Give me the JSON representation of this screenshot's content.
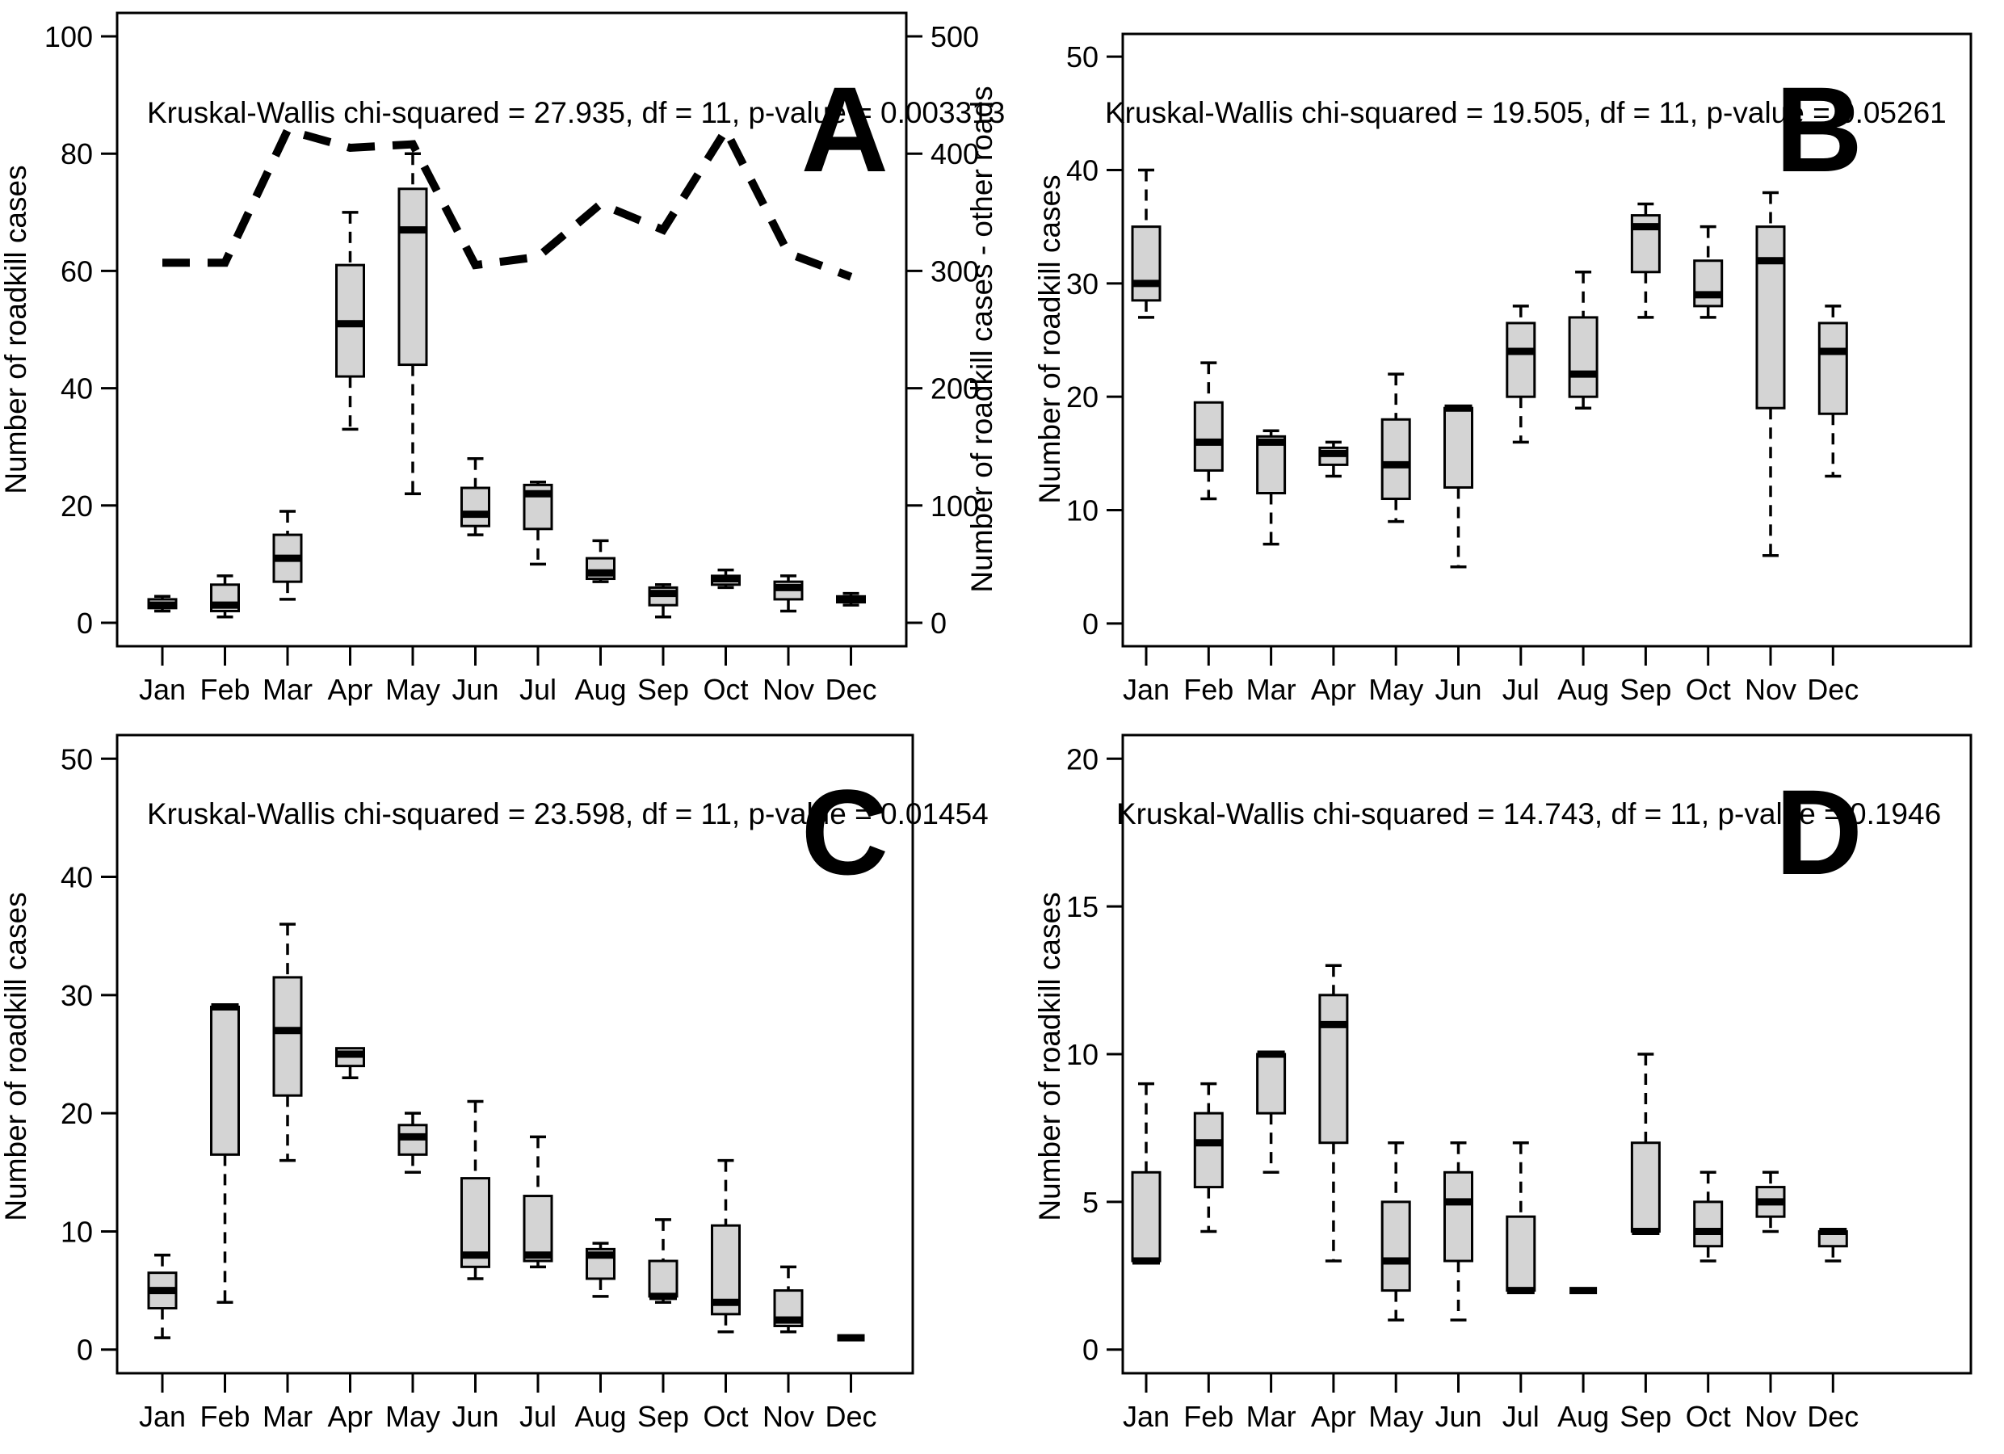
{
  "colors": {
    "background": "#ffffff",
    "box_fill": "#d4d4d4",
    "stroke": "#000000"
  },
  "box_stats_format": [
    "whisker_low",
    "q1",
    "median",
    "q3",
    "whisker_high"
  ],
  "chart_data": [
    {
      "id": "A",
      "type": "boxplot",
      "panel_label": "A",
      "stat_text": "Kruskal-Wallis chi-squared = 27.935, df = 11, p-value = 0.003313",
      "ylabel": "Number of roadkill cases",
      "ylim": [
        0,
        100
      ],
      "yticks": [
        0,
        20,
        40,
        60,
        80,
        100
      ],
      "categories": [
        "Jan",
        "Feb",
        "Mar",
        "Apr",
        "May",
        "Jun",
        "Jul",
        "Aug",
        "Sep",
        "Oct",
        "Nov",
        "Dec"
      ],
      "boxes": [
        [
          2,
          2.5,
          3,
          4,
          4.5
        ],
        [
          1,
          2,
          3,
          6.5,
          8
        ],
        [
          4,
          7,
          11,
          15,
          19
        ],
        [
          33,
          42,
          51,
          61,
          70
        ],
        [
          22,
          44,
          67,
          74,
          80
        ],
        [
          15,
          16.5,
          18.5,
          23,
          28
        ],
        [
          10,
          16,
          22,
          23.5,
          24
        ],
        [
          7,
          7.5,
          8.5,
          11,
          14
        ],
        [
          1,
          3,
          5,
          6,
          6.5
        ],
        [
          6,
          6.5,
          7.5,
          8,
          9
        ],
        [
          2,
          4,
          6,
          7,
          8
        ],
        [
          3,
          3.5,
          4,
          4.5,
          5
        ]
      ],
      "overlay_line": {
        "label": "Number of roadkill cases - other roads",
        "axis": "right",
        "style": "dashed",
        "ylim": [
          0,
          500
        ],
        "yticks": [
          0,
          100,
          200,
          300,
          400,
          500
        ],
        "values": [
          307,
          307,
          420,
          405,
          408,
          305,
          312,
          357,
          335,
          420,
          315,
          295
        ]
      }
    },
    {
      "id": "B",
      "type": "boxplot",
      "panel_label": "B",
      "stat_text": "Kruskal-Wallis chi-squared = 19.505, df = 11, p-value = 0.05261",
      "ylabel": "Number of roadkill cases",
      "ylim": [
        0,
        50
      ],
      "yticks": [
        0,
        10,
        20,
        30,
        40,
        50
      ],
      "categories": [
        "Jan",
        "Feb",
        "Mar",
        "Apr",
        "May",
        "Jun",
        "Jul",
        "Aug",
        "Sep",
        "Oct",
        "Nov",
        "Dec"
      ],
      "boxes": [
        [
          27,
          28.5,
          30,
          35,
          40
        ],
        [
          11,
          13.5,
          16,
          19.5,
          23
        ],
        [
          7,
          11.5,
          16,
          16.5,
          17
        ],
        [
          13,
          14,
          15,
          15.5,
          16
        ],
        [
          9,
          11,
          14,
          18,
          22
        ],
        [
          5,
          12,
          19,
          19,
          19
        ],
        [
          16,
          20,
          24,
          26.5,
          28
        ],
        [
          19,
          20,
          22,
          27,
          31
        ],
        [
          27,
          31,
          35,
          36,
          37
        ],
        [
          27,
          28,
          29,
          32,
          35
        ],
        [
          6,
          19,
          32,
          35,
          38
        ],
        [
          13,
          18.5,
          24,
          26.5,
          28
        ]
      ]
    },
    {
      "id": "C",
      "type": "boxplot",
      "panel_label": "C",
      "stat_text": "Kruskal-Wallis chi-squared = 23.598, df = 11, p-value = 0.01454",
      "ylabel": "Number of roadkill cases",
      "ylim": [
        0,
        50
      ],
      "yticks": [
        0,
        10,
        20,
        30,
        40,
        50
      ],
      "categories": [
        "Jan",
        "Feb",
        "Mar",
        "Apr",
        "May",
        "Jun",
        "Jul",
        "Aug",
        "Sep",
        "Oct",
        "Nov",
        "Dec"
      ],
      "boxes": [
        [
          1,
          3.5,
          5,
          6.5,
          8
        ],
        [
          4,
          16.5,
          29,
          29,
          29
        ],
        [
          16,
          21.5,
          27,
          31.5,
          36
        ],
        [
          23,
          24,
          25,
          25.5,
          25.5
        ],
        [
          15,
          16.5,
          18,
          19,
          20
        ],
        [
          6,
          7,
          8,
          14.5,
          21
        ],
        [
          7,
          7.5,
          8,
          13,
          18
        ],
        [
          4.5,
          6,
          8,
          8.5,
          9
        ],
        [
          4,
          4.5,
          4.5,
          7.5,
          11
        ],
        [
          1.5,
          3,
          4,
          10.5,
          16
        ],
        [
          1.5,
          2,
          2.5,
          5,
          7
        ],
        [
          1,
          1,
          1,
          1,
          1
        ]
      ]
    },
    {
      "id": "D",
      "type": "boxplot",
      "panel_label": "D",
      "stat_text": "Kruskal-Wallis chi-squared = 14.743, df = 11, p-value = 0.1946",
      "ylabel": "Number of roadkill cases",
      "ylim": [
        0,
        20
      ],
      "yticks": [
        0,
        5,
        10,
        15,
        20
      ],
      "categories": [
        "Jan",
        "Feb",
        "Mar",
        "Apr",
        "May",
        "Jun",
        "Jul",
        "Aug",
        "Sep",
        "Oct",
        "Nov",
        "Dec"
      ],
      "boxes": [
        [
          3,
          3,
          3,
          6,
          9
        ],
        [
          4,
          5.5,
          7,
          8,
          9
        ],
        [
          6,
          8,
          10,
          10,
          10
        ],
        [
          3,
          7,
          11,
          12,
          13
        ],
        [
          1,
          2,
          3,
          5,
          7
        ],
        [
          1,
          3,
          5,
          6,
          7
        ],
        [
          2,
          2,
          2,
          4.5,
          7
        ],
        [
          2,
          2,
          2,
          2,
          2
        ],
        [
          4,
          4,
          4,
          7,
          10
        ],
        [
          3,
          3.5,
          4,
          5,
          6
        ],
        [
          4,
          4.5,
          5,
          5.5,
          6
        ],
        [
          3,
          3.5,
          4,
          4,
          4
        ]
      ]
    }
  ]
}
